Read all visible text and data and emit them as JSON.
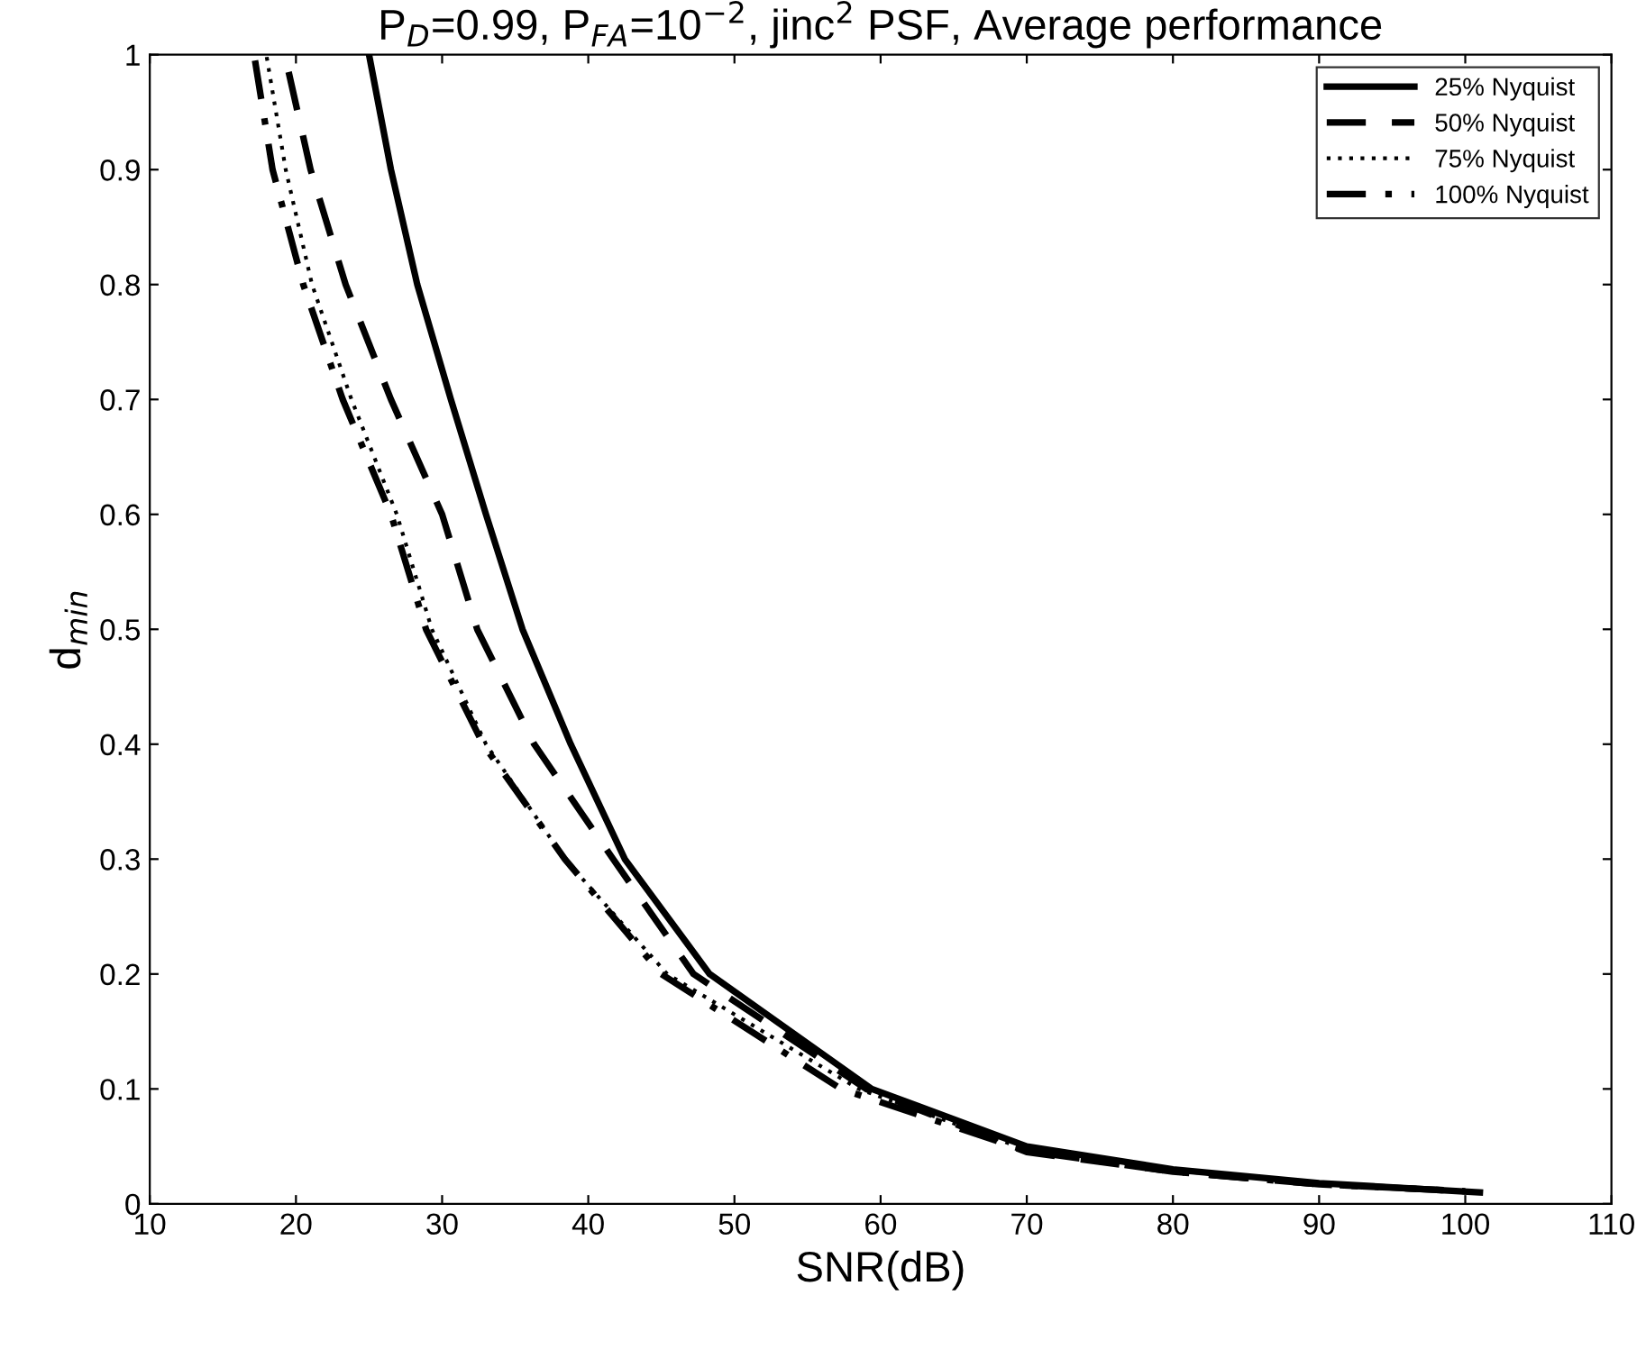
{
  "chart_data": {
    "type": "line",
    "title": "P$_{D}$=0.99, P$_{FA}$=10$^{−2}$, jinc$^{2}$ PSF, Average performance",
    "xlabel": "SNR(dB)",
    "ylabel": "d$_{min}$",
    "xlim": [
      10,
      110
    ],
    "xticks": [
      10,
      20,
      30,
      40,
      50,
      60,
      70,
      80,
      90,
      100,
      110
    ],
    "ylim": [
      0,
      1
    ],
    "yticks": [
      0,
      0.1,
      0.2,
      0.3,
      0.4,
      0.5,
      0.6,
      0.7,
      0.8,
      0.9,
      1
    ],
    "grid": false,
    "legend": "top right",
    "marker": "none",
    "series": [
      {
        "name": "25% Nyquist",
        "color": "#000000",
        "line_style": "solid",
        "x": [
          25.0,
          26.5,
          28.3,
          30.6,
          33.0,
          35.5,
          38.8,
          42.5,
          48.3,
          59.4,
          70,
          80,
          90,
          101
        ],
        "values": [
          1.0,
          0.9,
          0.8,
          0.7,
          0.6,
          0.5,
          0.4,
          0.3,
          0.2,
          0.1,
          0.05,
          0.03,
          0.018,
          0.01
        ]
      },
      {
        "name": "50% Nyquist",
        "color": "#000000",
        "line_style": "dashed",
        "x": [
          19.5,
          21.0,
          23.4,
          26.5,
          30.0,
          32.4,
          36.3,
          41.7,
          47.2,
          59.0,
          70,
          80,
          90,
          100
        ],
        "values": [
          0.985,
          0.9,
          0.8,
          0.7,
          0.6,
          0.5,
          0.4,
          0.3,
          0.2,
          0.1,
          0.045,
          0.028,
          0.017,
          0.011
        ]
      },
      {
        "name": "75% Nyquist",
        "color": "#000000",
        "line_style": "dotted",
        "x": [
          18.0,
          19.3,
          21.1,
          23.8,
          26.9,
          29.3,
          33.0,
          38.4,
          45.4,
          58.5,
          70,
          80,
          90,
          100
        ],
        "values": [
          0.998,
          0.9,
          0.8,
          0.7,
          0.6,
          0.5,
          0.4,
          0.3,
          0.2,
          0.1,
          0.047,
          0.029,
          0.018,
          0.011
        ]
      },
      {
        "name": "100% Nyquist",
        "color": "#000000",
        "line_style": "dashdot",
        "x": [
          17.2,
          18.4,
          20.5,
          23.2,
          26.5,
          28.9,
          32.8,
          38.4,
          45.0,
          57.3,
          70,
          80,
          90,
          100
        ],
        "values": [
          0.995,
          0.9,
          0.8,
          0.7,
          0.6,
          0.5,
          0.4,
          0.3,
          0.2,
          0.1,
          0.046,
          0.028,
          0.017,
          0.011
        ]
      }
    ]
  }
}
